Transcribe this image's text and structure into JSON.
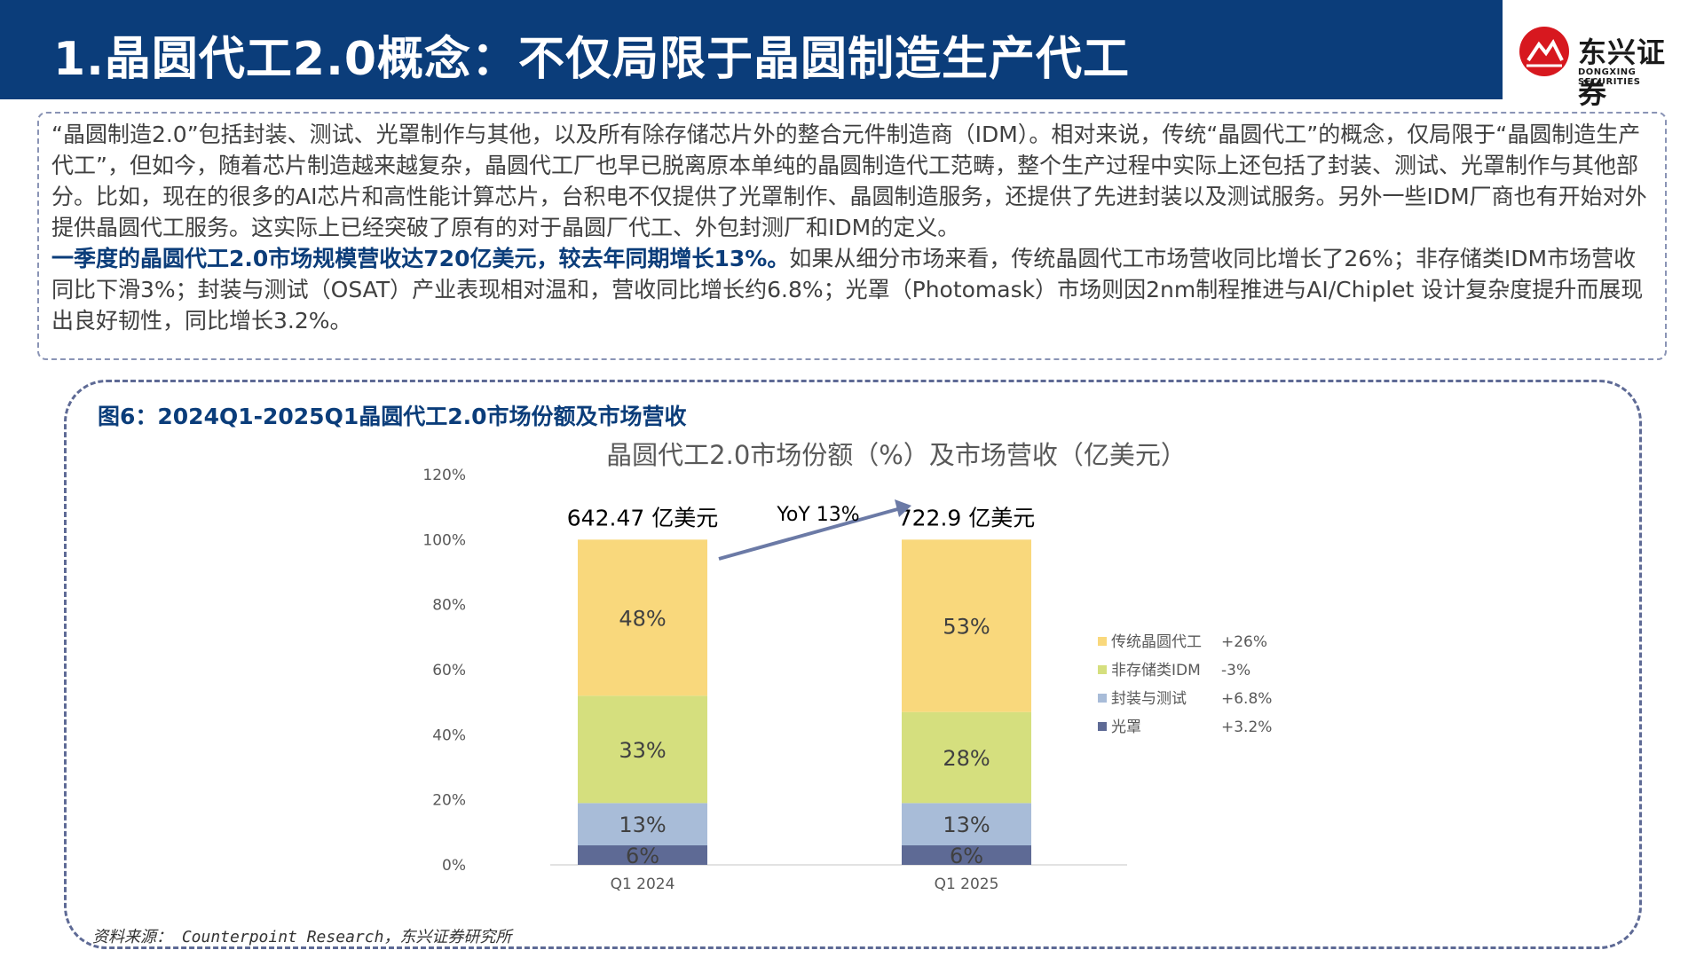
{
  "header": {
    "title": "1.晶圆代工2.0概念：不仅局限于晶圆制造生产代工"
  },
  "logo": {
    "cn": "东兴证券",
    "en": "DONGXING SECURITIES"
  },
  "intro": {
    "p1": "“晶圆制造2.0”包括封装、测试、光罩制作与其他，以及所有除存储芯片外的整合元件制造商（IDM）。相对来说，传统“晶圆代工”的概念，仅局限于“晶圆制造生产代工”，但如今，随着芯片制造越来越复杂，晶圆代工厂也早已脱离原本单纯的晶圆制造代工范畴，整个生产过程中实际上还包括了封装、测试、光罩制作与其他部分。比如，现在的很多的AI芯片和高性能计算芯片，台积电不仅提供了光罩制作、晶圆制造服务，还提供了先进封装以及测试服务。另外一些IDM厂商也有开始对外提供晶圆代工服务。这实际上已经突破了原有的对于晶圆厂代工、外包封测厂和IDM的定义。",
    "p2_bold": "一季度的晶圆代工2.0市场规模营收达720亿美元，较去年同期增长13%。",
    "p2_rest": "如果从细分市场来看，传统晶圆代工市场营收同比增长了26%；非存储类IDM市场营收同比下滑3%；封装与测试（OSAT）产业表现相对温和，营收同比增长约6.8%；光罩（Photomask）市场则因2nm制程推进与AI/Chiplet 设计复杂度提升而展现出良好韧性，同比增长3.2%。"
  },
  "figure": {
    "caption": "图6：2024Q1-2025Q1晶圆代工2.0市场份额及市场营收",
    "source": "资料来源： Counterpoint Research，东兴证券研究所"
  },
  "chart_data": {
    "type": "bar",
    "stacked": true,
    "title": "晶圆代工2.0市场份额（%）及市场营收（亿美元）",
    "categories": [
      "Q1 2024",
      "Q1 2025"
    ],
    "ylim": [
      0,
      120
    ],
    "yticks": [
      "0%",
      "20%",
      "40%",
      "60%",
      "80%",
      "100%",
      "120%"
    ],
    "series": [
      {
        "name": "光罩",
        "growth": "+3.2%",
        "values": [
          6,
          6
        ],
        "labels": [
          "6%",
          "6%"
        ],
        "color": "#5e6a95"
      },
      {
        "name": "封装与测试",
        "growth": "+6.8%",
        "values": [
          13,
          13
        ],
        "labels": [
          "13%",
          "13%"
        ],
        "color": "#a8bcd8"
      },
      {
        "name": "非存储类IDM",
        "growth": "-3%",
        "values": [
          33,
          28
        ],
        "labels": [
          "33%",
          "28%"
        ],
        "color": "#d5df7e"
      },
      {
        "name": "传统晶圆代工",
        "growth": "+26%",
        "values": [
          48,
          53
        ],
        "labels": [
          "48%",
          "53%"
        ],
        "color": "#f9d87c"
      }
    ],
    "totals": [
      "642.47 亿美元",
      "722.9 亿美元"
    ],
    "annotation": "YoY 13%",
    "legend_position": "right",
    "grid": false
  }
}
